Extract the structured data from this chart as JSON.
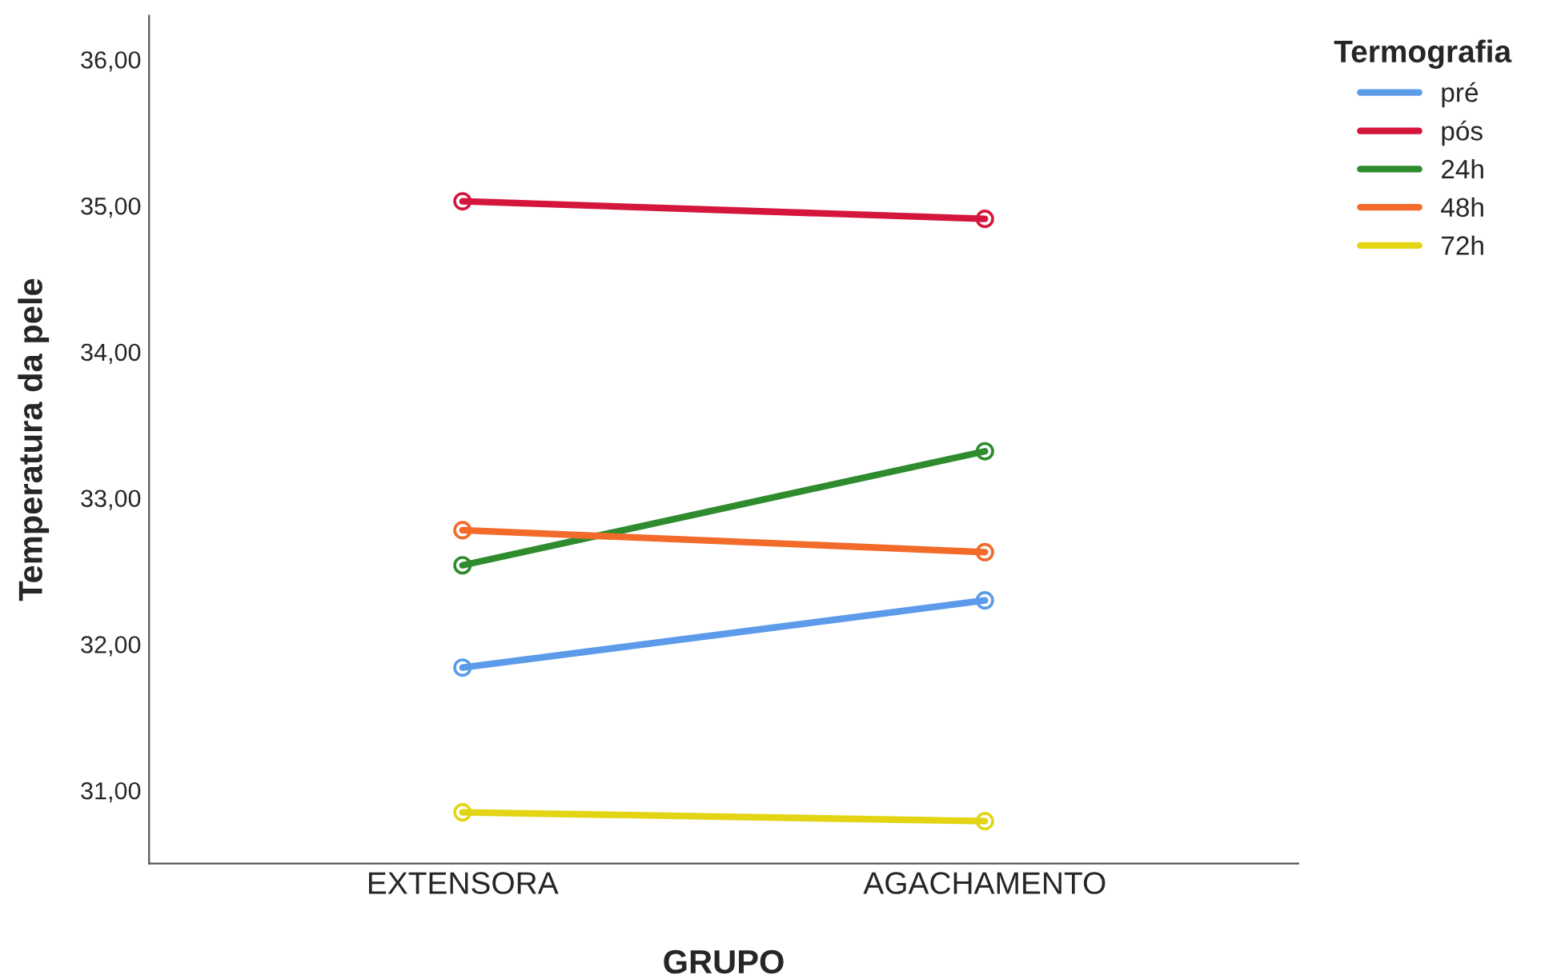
{
  "chart_data": {
    "type": "line",
    "xlabel": "GRUPO",
    "ylabel": "Temperatura da pele",
    "legend_title": "Termografia",
    "legend": "top right",
    "marker": "circle",
    "line_style": "solid",
    "grid": false,
    "categories": [
      "EXTENSORA",
      "AGACHAMENTO"
    ],
    "series": [
      {
        "name": "pré",
        "color": "#5b9bea",
        "values": [
          31.84,
          32.3
        ]
      },
      {
        "name": "pós",
        "color": "#d5163c",
        "values": [
          35.03,
          34.91
        ]
      },
      {
        "name": "24h",
        "color": "#2e8b2e",
        "values": [
          32.54,
          33.32
        ]
      },
      {
        "name": "48h",
        "color": "#f26b2a",
        "values": [
          32.78,
          32.63
        ]
      },
      {
        "name": "72h",
        "color": "#e3d414",
        "values": [
          30.85,
          30.79
        ]
      }
    ],
    "ylim": [
      30.5,
      36.3
    ],
    "yticks": [
      {
        "value": 31,
        "label": "31,00"
      },
      {
        "value": 32,
        "label": "32,00"
      },
      {
        "value": 33,
        "label": "33,00"
      },
      {
        "value": 34,
        "label": "34,00"
      },
      {
        "value": 35,
        "label": "35,00"
      },
      {
        "value": 36,
        "label": "36,00"
      }
    ]
  }
}
